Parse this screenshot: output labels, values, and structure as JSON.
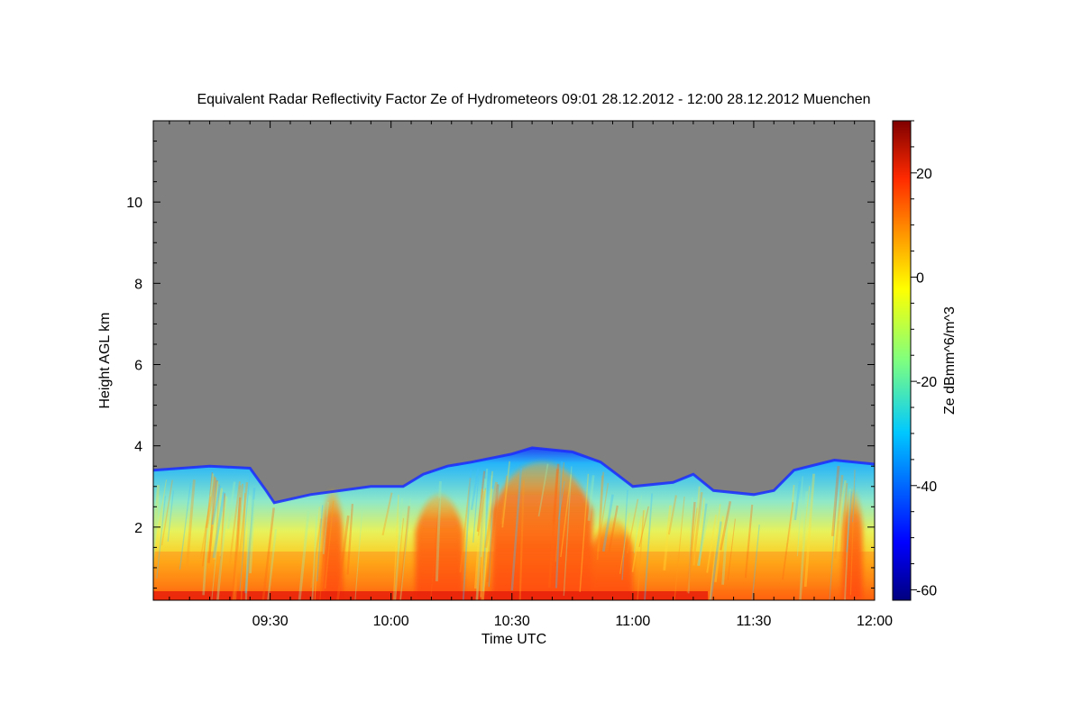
{
  "chart_data": {
    "type": "heatmap",
    "title": "Equivalent Radar Reflectivity Factor Ze of Hydrometeors   09:01 28.12.2012 - 12:00 28.12.2012 Muenchen",
    "xlabel": "Time UTC",
    "ylabel": "Height AGL km",
    "colorbar_label": "Ze dBmm^6/m^3",
    "x_ticks": [
      "09:30",
      "10:00",
      "10:30",
      "11:00",
      "11:30",
      "12:00"
    ],
    "y_ticks": [
      "2",
      "4",
      "6",
      "8",
      "10"
    ],
    "colorbar_ticks": [
      "20",
      "0",
      "-20",
      "-40",
      "-60"
    ],
    "x_range": [
      "09:01",
      "12:00"
    ],
    "y_range_km": [
      0.2,
      12
    ],
    "z_range_dbz": [
      -62,
      30
    ],
    "colormap": "jet",
    "no_data_color": "#808080",
    "cloud_top_km": [
      {
        "time": "09:01",
        "top": 3.4
      },
      {
        "time": "09:15",
        "top": 3.5
      },
      {
        "time": "09:25",
        "top": 3.45
      },
      {
        "time": "09:29",
        "top": 2.9
      },
      {
        "time": "09:31",
        "top": 2.6
      },
      {
        "time": "09:40",
        "top": 2.8
      },
      {
        "time": "09:55",
        "top": 3.0
      },
      {
        "time": "10:03",
        "top": 3.0
      },
      {
        "time": "10:08",
        "top": 3.3
      },
      {
        "time": "10:14",
        "top": 3.5
      },
      {
        "time": "10:20",
        "top": 3.6
      },
      {
        "time": "10:30",
        "top": 3.8
      },
      {
        "time": "10:35",
        "top": 3.95
      },
      {
        "time": "10:45",
        "top": 3.85
      },
      {
        "time": "10:52",
        "top": 3.6
      },
      {
        "time": "10:56",
        "top": 3.3
      },
      {
        "time": "11:00",
        "top": 3.0
      },
      {
        "time": "11:10",
        "top": 3.1
      },
      {
        "time": "11:15",
        "top": 3.3
      },
      {
        "time": "11:20",
        "top": 2.9
      },
      {
        "time": "11:30",
        "top": 2.8
      },
      {
        "time": "11:35",
        "top": 2.9
      },
      {
        "time": "11:40",
        "top": 3.4
      },
      {
        "time": "11:50",
        "top": 3.65
      },
      {
        "time": "12:00",
        "top": 3.55
      }
    ],
    "intense_cores": [
      {
        "time_start": "10:06",
        "time_end": "10:18",
        "top_km": 2.8
      },
      {
        "time_start": "10:25",
        "time_end": "10:50",
        "top_km": 3.6
      },
      {
        "time_start": "10:50",
        "time_end": "11:00",
        "top_km": 2.2
      },
      {
        "time_start": "09:43",
        "time_end": "09:48",
        "top_km": 2.9
      },
      {
        "time_start": "11:52",
        "time_end": "11:57",
        "top_km": 2.9
      }
    ]
  }
}
